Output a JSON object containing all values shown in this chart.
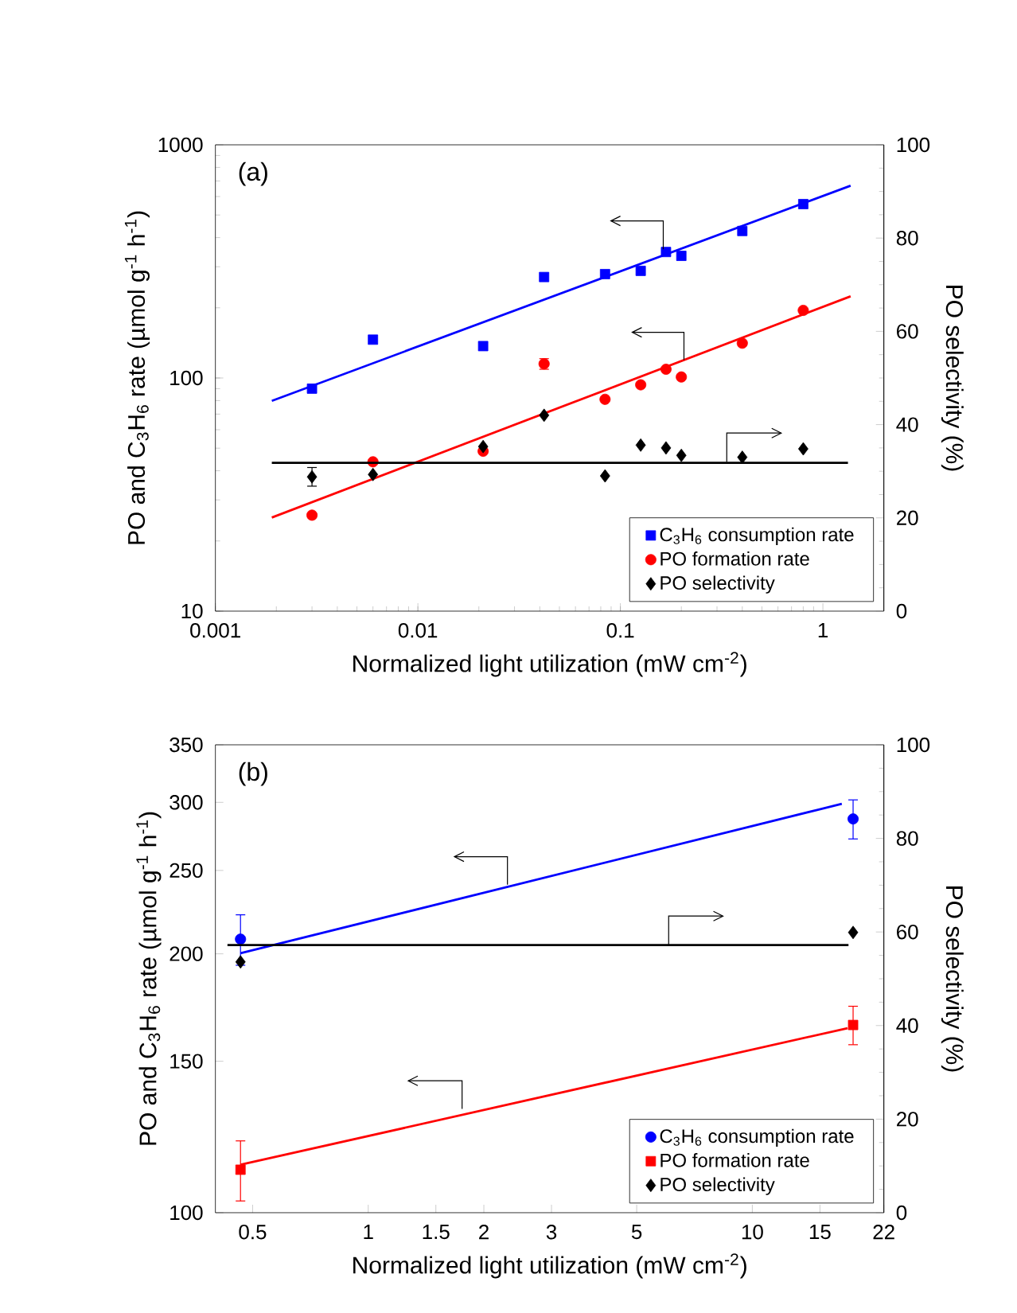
{
  "chart_data": [
    {
      "type": "scatter",
      "annotations": [
        "(a)"
      ],
      "xlabel": "Normalized light utilization (mW cm$^{-2}$)",
      "ylabel": "PO and C$_{3}$H$_{6}$ rate (µmol g$^{-1}$ h$^{-1}$)",
      "y2label": "PO selectivity (%)",
      "log": "xy",
      "xlim": [
        0.001,
        2
      ],
      "xticks": [
        0.001,
        0.01,
        0.1,
        1
      ],
      "ylim": [
        10,
        1000
      ],
      "yticks": [
        10,
        100,
        1000
      ],
      "y2lim": [
        0,
        100
      ],
      "y2ticks": [
        0,
        20,
        40,
        60,
        80,
        100
      ],
      "legend": "bottom right",
      "series": [
        {
          "name": "C$_{3}$H$_{6}$ consumption rate",
          "color": "#0000ff",
          "marker": "square",
          "x": [
            0.003,
            0.006,
            0.021,
            0.042,
            0.084,
            0.126,
            0.168,
            0.2,
            0.4,
            0.8
          ],
          "values": [
            90,
            146,
            137,
            271,
            279,
            288,
            347,
            334,
            427,
            557
          ]
        },
        {
          "name": "PO formation rate",
          "color": "#ff0000",
          "marker": "circle",
          "x": [
            0.003,
            0.006,
            0.021,
            0.042,
            0.084,
            0.126,
            0.168,
            0.2,
            0.4,
            0.8
          ],
          "values": [
            25.8,
            43.7,
            48.5,
            115,
            81,
            93.5,
            109,
            101,
            141,
            195
          ],
          "errors": [
            null,
            null,
            null,
            6,
            null,
            null,
            null,
            null,
            null,
            null
          ]
        },
        {
          "name": "PO selectivity",
          "color": "#000000",
          "marker": "diamond",
          "axis": "y2",
          "x": [
            0.003,
            0.006,
            0.021,
            0.042,
            0.084,
            0.126,
            0.168,
            0.2,
            0.4,
            0.8
          ],
          "values": [
            28.8,
            29.3,
            35.3,
            42,
            29,
            35.6,
            35,
            33.4,
            33,
            34.8
          ],
          "errors": [
            2,
            null,
            null,
            null,
            null,
            null,
            null,
            null,
            null,
            null
          ]
        },
        {
          "type": "line",
          "color": "#0000ff",
          "x": [
            0.0019,
            1.37
          ],
          "values": [
            79.8,
            668
          ]
        },
        {
          "type": "line",
          "color": "#ff0000",
          "x": [
            0.0019,
            1.37
          ],
          "values": [
            25.2,
            224
          ]
        },
        {
          "type": "line",
          "color": "#000000",
          "axis": "y2",
          "x": [
            0.0019,
            1.33
          ],
          "values": [
            31.8,
            31.8
          ]
        }
      ]
    },
    {
      "type": "scatter",
      "annotations": [
        "(b)"
      ],
      "xlabel": "Normalized light utilization (mW cm$^{-2}$)",
      "ylabel": "PO and C$_{3}$H$_{6}$ rate (µmol g$^{-1}$ h$^{-1}$)",
      "y2label": "PO selectivity (%)",
      "log": "xy",
      "xlim": [
        0.4,
        22
      ],
      "xticks": [
        0.5,
        1,
        1.5,
        2,
        3,
        5,
        10,
        15,
        22
      ],
      "ylim": [
        100,
        350
      ],
      "yticks": [
        100,
        150,
        200,
        250,
        300,
        350
      ],
      "y2lim": [
        0,
        100
      ],
      "y2ticks": [
        0,
        20,
        40,
        60,
        80,
        100
      ],
      "legend": "bottom right",
      "series": [
        {
          "name": "C$_{3}$H$_{6}$ consumption rate",
          "color": "#0000ff",
          "marker": "circle",
          "x": [
            0.465,
            18.3
          ],
          "values": [
            208,
            287
          ],
          "errors": [
            14,
            15
          ]
        },
        {
          "name": "PO formation rate",
          "color": "#ff0000",
          "marker": "square",
          "x": [
            0.465,
            18.3
          ],
          "values": [
            112.2,
            165.3
          ],
          "errors": [
            9,
            8.5
          ]
        },
        {
          "name": "PO selectivity",
          "color": "#000000",
          "marker": "diamond",
          "axis": "y2",
          "x": [
            0.465,
            18.3
          ],
          "values": [
            53.6,
            59.9
          ]
        },
        {
          "type": "line",
          "color": "#0000ff",
          "x": [
            0.465,
            17.1
          ],
          "values": [
            200.3,
            298.8
          ]
        },
        {
          "type": "line",
          "color": "#ff0000",
          "x": [
            0.465,
            17.7
          ],
          "values": [
            113.7,
            163.9
          ]
        },
        {
          "type": "line",
          "color": "#000000",
          "axis": "y2",
          "x": [
            0.43,
            17.8
          ],
          "values": [
            57.2,
            57.2
          ]
        }
      ]
    }
  ]
}
